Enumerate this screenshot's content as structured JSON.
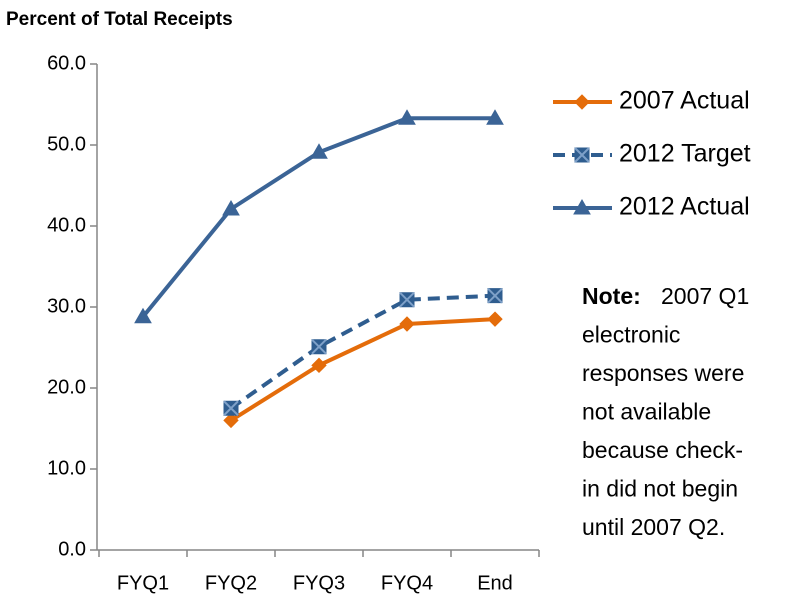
{
  "chart_data": {
    "type": "line",
    "title": "Percent of Total Receipts",
    "categories": [
      "FYQ1",
      "FYQ2",
      "FYQ3",
      "FYQ4",
      "End"
    ],
    "series": [
      {
        "name": "2007 Actual",
        "color": "#e46c0a",
        "marker": "diamond",
        "dashed": false,
        "values": [
          null,
          16.0,
          22.8,
          27.9,
          28.5
        ]
      },
      {
        "name": "2012 Target",
        "color": "#2f5d8f",
        "marker": "square",
        "dashed": true,
        "values": [
          null,
          17.5,
          25.1,
          30.9,
          31.4
        ]
      },
      {
        "name": "2012 Actual",
        "color": "#3b6496",
        "marker": "triangle",
        "dashed": false,
        "values": [
          28.8,
          42.1,
          49.1,
          53.3,
          53.3
        ]
      }
    ],
    "ylim": [
      0,
      60
    ],
    "yticks": [
      {
        "value": 0,
        "label": "0.0"
      },
      {
        "value": 10,
        "label": "10.0"
      },
      {
        "value": 20,
        "label": "20.0"
      },
      {
        "value": 30,
        "label": "30.0"
      },
      {
        "value": 40,
        "label": "40.0"
      },
      {
        "value": 50,
        "label": "50.0"
      },
      {
        "value": 60,
        "label": "60.0"
      }
    ],
    "grid": false,
    "legend": "right",
    "note": {
      "label": "Note:",
      "lines": [
        "2007 Q1",
        "electronic",
        "responses were",
        "not available",
        "because check-",
        "in did not begin",
        "until 2007 Q2."
      ]
    }
  }
}
